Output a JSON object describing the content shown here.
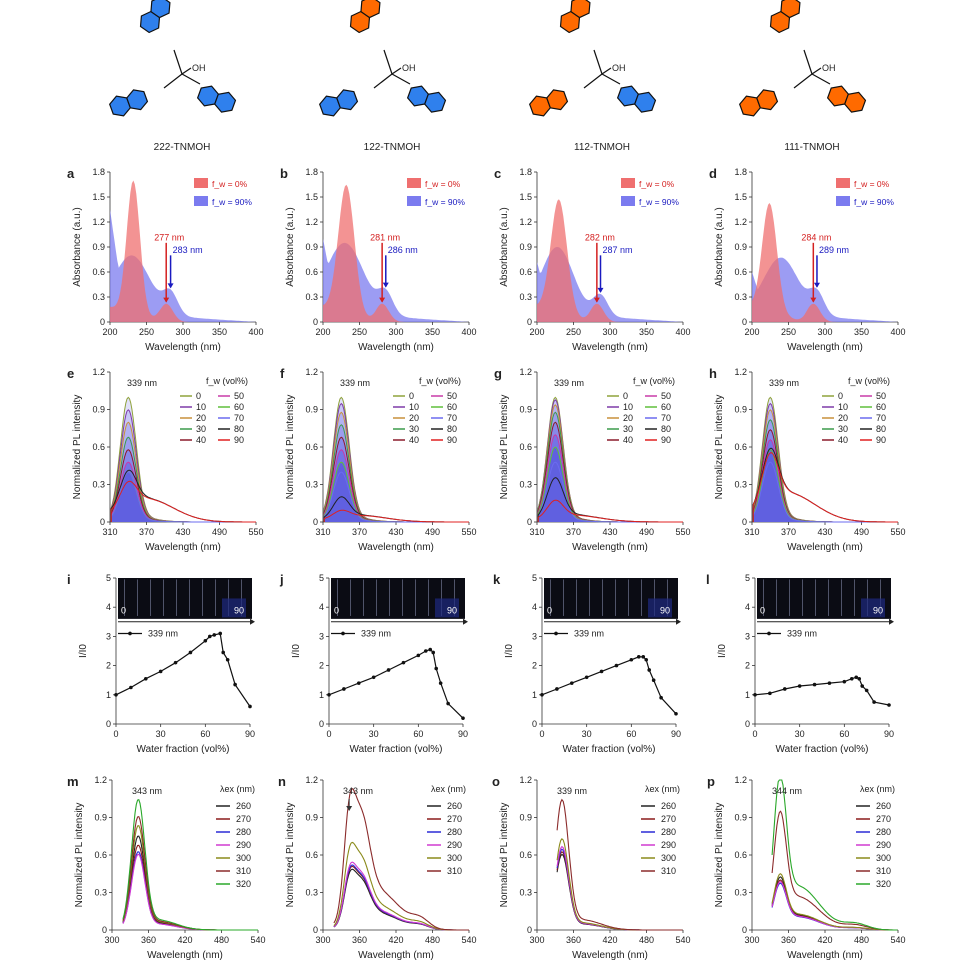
{
  "molecules": [
    {
      "label": "222-TNMOH",
      "oh": "OH",
      "rings": [
        "blue",
        "blue",
        "blue"
      ]
    },
    {
      "label": "122-TNMOH",
      "oh": "OH",
      "rings": [
        "orange",
        "blue",
        "blue"
      ]
    },
    {
      "label": "112-TNMOH",
      "oh": "OH",
      "rings": [
        "orange",
        "orange",
        "blue"
      ]
    },
    {
      "label": "111-TNMOH",
      "oh": "OH",
      "rings": [
        "orange",
        "orange",
        "orange"
      ]
    }
  ],
  "colors": {
    "blue": "#2f80ed",
    "orange": "#ff6a00",
    "abs_red": "#ef6f6f",
    "abs_blue": "#7b7bef",
    "overlap": "#8a3fa3"
  },
  "absorbance": {
    "ylabel": "Absorbance (a.u.)",
    "xlabel": "Wavelength (nm)",
    "xticks": [
      "200",
      "250",
      "300",
      "350",
      "400"
    ],
    "yticks": [
      "0",
      "0.3",
      "0.6",
      "0.9",
      "1.2",
      "1.5",
      "1.8"
    ],
    "xlim": [
      200,
      400
    ],
    "ylim": [
      0,
      1.8
    ],
    "legend": [
      "f_w = 0%",
      "f_w = 90%"
    ],
    "panels": [
      {
        "letter": "a",
        "red_label": "277 nm",
        "blue_label": "283 nm",
        "red_x": 277,
        "blue_x": 283
      },
      {
        "letter": "b",
        "red_label": "281 nm",
        "blue_label": "286 nm",
        "red_x": 281,
        "blue_x": 286
      },
      {
        "letter": "c",
        "red_label": "282 nm",
        "blue_label": "287 nm",
        "red_x": 282,
        "blue_x": 287
      },
      {
        "letter": "d",
        "red_label": "284 nm",
        "blue_label": "289 nm",
        "red_x": 284,
        "blue_x": 289
      }
    ]
  },
  "pl_water": {
    "ylabel": "Normalized PL intensity",
    "xlabel": "Wavelength (nm)",
    "xticks": [
      "310",
      "370",
      "430",
      "490",
      "550"
    ],
    "yticks": [
      "0",
      "0.3",
      "0.6",
      "0.9",
      "1.2"
    ],
    "xlim": [
      310,
      550
    ],
    "ylim": [
      0,
      1.2
    ],
    "peak_label": "339 nm",
    "legend_title": "f_w (vol%)",
    "legend_left": [
      "0",
      "10",
      "20",
      "30",
      "40"
    ],
    "legend_right": [
      "50",
      "60",
      "70",
      "80",
      "90"
    ],
    "panels": [
      "e",
      "f",
      "g",
      "h"
    ]
  },
  "ratio": {
    "ylabel": "I/I0",
    "xlabel": "Water fraction (vol%)",
    "xticks": [
      "0",
      "30",
      "60",
      "90"
    ],
    "yticks": [
      "0",
      "1",
      "2",
      "3",
      "4",
      "5"
    ],
    "xlim": [
      0,
      90
    ],
    "ylim": [
      0,
      5
    ],
    "series_label": "339 nm",
    "photo_left": "0",
    "photo_right": "90",
    "panels": [
      {
        "letter": "i",
        "x": [
          0,
          10,
          20,
          30,
          40,
          50,
          60,
          63,
          66,
          70,
          72,
          75,
          80,
          90
        ],
        "values": [
          1.0,
          1.25,
          1.55,
          1.8,
          2.1,
          2.45,
          2.85,
          3.0,
          3.05,
          3.1,
          2.45,
          2.2,
          1.35,
          0.6
        ]
      },
      {
        "letter": "j",
        "x": [
          0,
          10,
          20,
          30,
          40,
          50,
          60,
          65,
          68,
          70,
          72,
          75,
          80,
          90
        ],
        "values": [
          1.0,
          1.2,
          1.4,
          1.6,
          1.85,
          2.1,
          2.35,
          2.5,
          2.55,
          2.45,
          1.9,
          1.4,
          0.7,
          0.2
        ]
      },
      {
        "letter": "k",
        "x": [
          0,
          10,
          20,
          30,
          40,
          50,
          60,
          65,
          68,
          70,
          72,
          75,
          80,
          90
        ],
        "values": [
          1.0,
          1.2,
          1.4,
          1.6,
          1.8,
          2.0,
          2.2,
          2.3,
          2.3,
          2.2,
          1.85,
          1.5,
          0.9,
          0.35
        ]
      },
      {
        "letter": "l",
        "x": [
          0,
          10,
          20,
          30,
          40,
          50,
          60,
          65,
          68,
          70,
          72,
          75,
          80,
          90
        ],
        "values": [
          1.0,
          1.05,
          1.2,
          1.3,
          1.35,
          1.4,
          1.45,
          1.55,
          1.6,
          1.55,
          1.3,
          1.15,
          0.75,
          0.65
        ]
      }
    ]
  },
  "pl_excitation": {
    "ylabel": "Normalized PL intensity",
    "xlabel": "Wavelength (nm)",
    "xticks": [
      "300",
      "360",
      "420",
      "480",
      "540"
    ],
    "yticks": [
      "0",
      "0.3",
      "0.6",
      "0.9",
      "1.2"
    ],
    "xlim": [
      300,
      540
    ],
    "ylim": [
      0,
      1.2
    ],
    "legend_title": "λex (nm)",
    "panels": [
      {
        "letter": "m",
        "peak_label": "343 nm",
        "legend": [
          "260",
          "270",
          "280",
          "290",
          "300",
          "310",
          "320"
        ],
        "peaks": [
          0.72,
          0.65,
          0.6,
          0.58,
          0.8,
          0.87,
          1.0
        ],
        "center": 343,
        "arrow": false
      },
      {
        "letter": "n",
        "peak_label": "343 nm",
        "legend": [
          "260",
          "270",
          "280",
          "290",
          "300",
          "310"
        ],
        "peaks": [
          0.43,
          0.45,
          0.46,
          0.48,
          0.62,
          1.0
        ],
        "center": 360,
        "arrow": true
      },
      {
        "letter": "o",
        "peak_label": "339 nm",
        "legend": [
          "260",
          "270",
          "280",
          "290",
          "300",
          "310"
        ],
        "peaks": [
          0.58,
          0.6,
          0.62,
          0.64,
          0.7,
          1.0
        ],
        "center": 341,
        "arrow": false
      },
      {
        "letter": "p",
        "peak_label": "344 nm",
        "legend": [
          "260",
          "270",
          "280",
          "290",
          "300",
          "310",
          "320"
        ],
        "peaks": [
          0.34,
          0.32,
          0.3,
          0.31,
          0.36,
          0.76,
          1.0
        ],
        "center": 346,
        "arrow": false
      }
    ]
  },
  "fw_colors": [
    "#8fa23a",
    "#7d3aa8",
    "#c9913a",
    "#3b9a4a",
    "#8b1a2a",
    "#c93aa8",
    "#5fbf3a",
    "#6b6bef",
    "#222222",
    "#e02020"
  ],
  "ex_colors": [
    "#222222",
    "#8b1a1a",
    "#2b2bd6",
    "#d13ad1",
    "#8a8a1a",
    "#8b2b2b",
    "#2aa82a"
  ]
}
